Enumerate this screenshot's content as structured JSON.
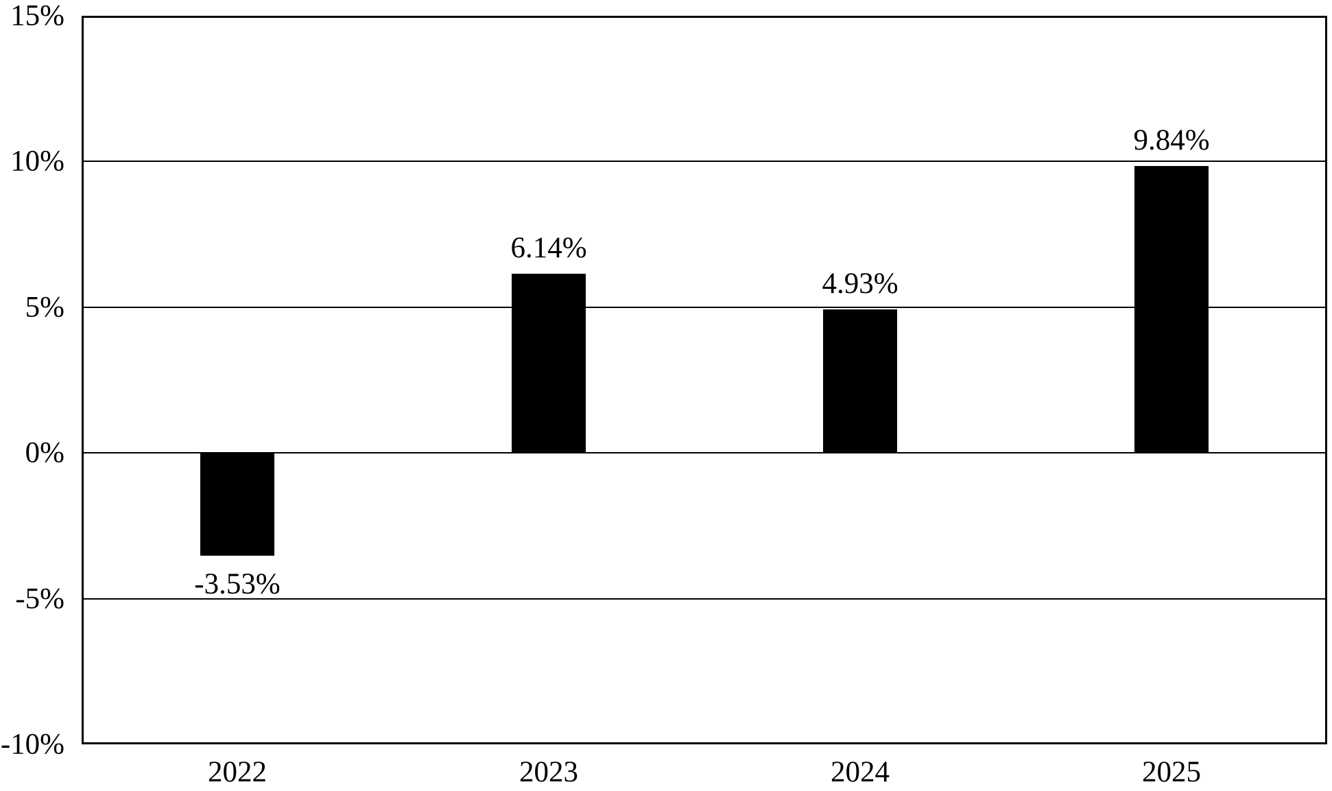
{
  "chart_data": {
    "type": "bar",
    "title": "",
    "xlabel": "",
    "ylabel": "",
    "categories": [
      "2022",
      "2023",
      "2024",
      "2025"
    ],
    "values": [
      -3.53,
      6.14,
      4.93,
      9.84
    ],
    "data_labels": [
      "-3.53%",
      "6.14%",
      "4.93%",
      "9.84%"
    ],
    "y_axis": {
      "tick_values": [
        15,
        10,
        5,
        0,
        -5,
        -10
      ],
      "tick_labels": [
        "15%",
        "10%",
        "5%",
        "0%",
        "-5%",
        "-10%"
      ],
      "ylim": [
        -10,
        15
      ],
      "grid": true
    },
    "legend_position": "none",
    "bar_color": "#000000",
    "grid_color": "#000000",
    "background_color": "#ffffff",
    "text_color": "#000000"
  }
}
